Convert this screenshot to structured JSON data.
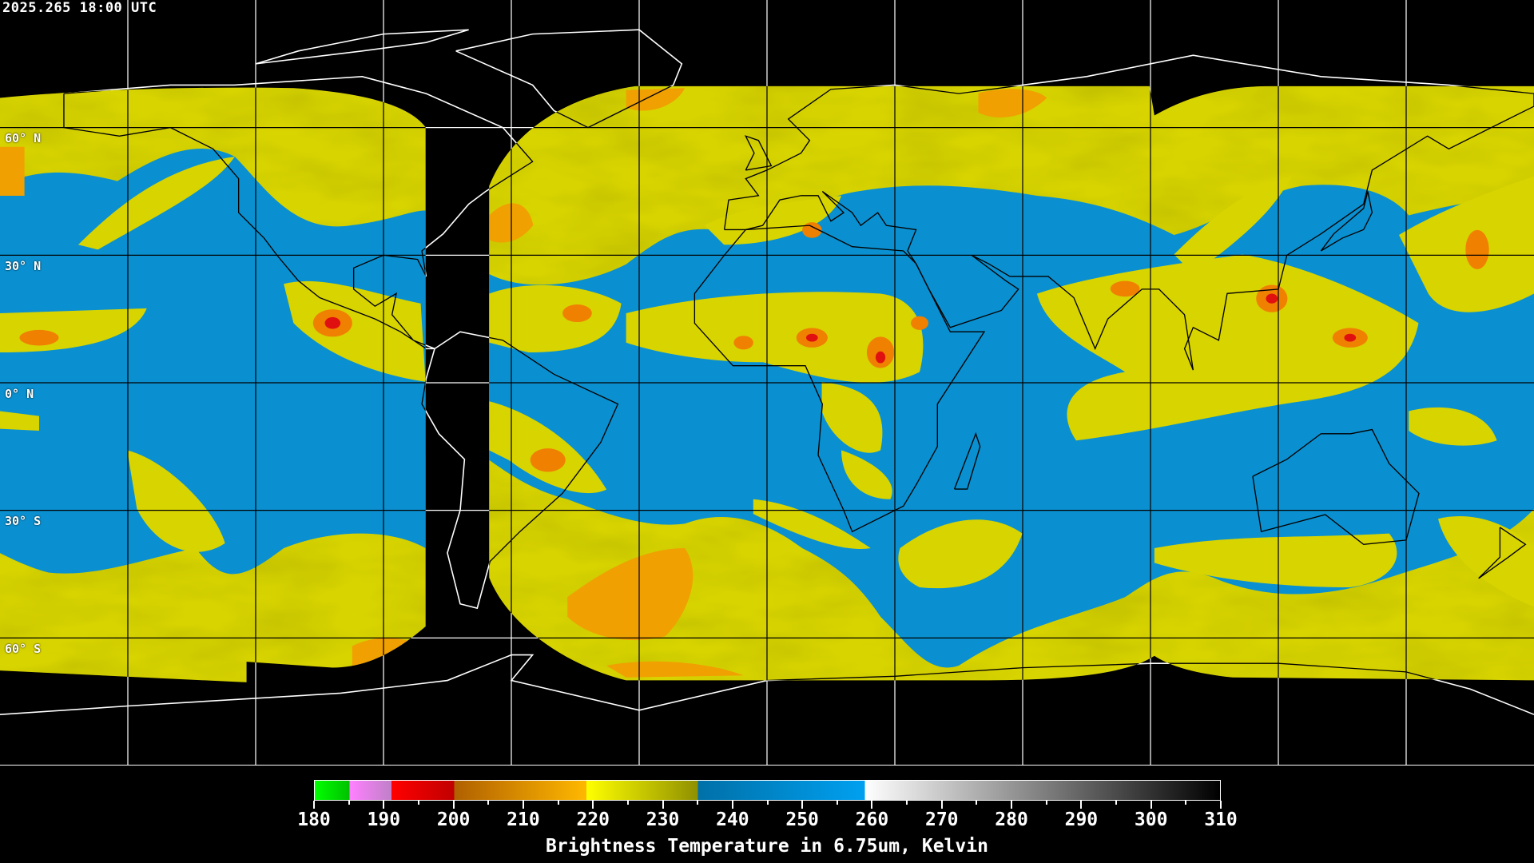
{
  "header": {
    "timestamp": "2025.265 18:00 UTC"
  },
  "map": {
    "projection": "equirectangular",
    "lon_range": [
      -180,
      180
    ],
    "lat_range": [
      -90,
      90
    ],
    "grid_spacing_deg": 30,
    "lat_labels": [
      "60° N",
      "30° N",
      "0° N",
      "30° S",
      "60° S"
    ],
    "colors": {
      "background": "#000000",
      "grid_inside": "#000000",
      "grid_outside": "#ffffff",
      "coast_inside": "#000000",
      "coast_outside": "#ffffff"
    }
  },
  "colorbar": {
    "range": [
      180,
      310
    ],
    "ticks": [
      "180",
      "190",
      "200",
      "210",
      "220",
      "230",
      "240",
      "250",
      "260",
      "270",
      "280",
      "290",
      "300",
      "310"
    ],
    "label": "Brightness Temperature in 6.75um, Kelvin",
    "segments": [
      {
        "from": 180,
        "to": 185,
        "colors": [
          "#00ff00",
          "#00c000"
        ]
      },
      {
        "from": 185,
        "to": 191,
        "colors": [
          "#ff80ff",
          "#c080c8"
        ]
      },
      {
        "from": 191,
        "to": 200,
        "colors": [
          "#ff0000",
          "#c00000"
        ]
      },
      {
        "from": 200,
        "to": 219,
        "colors": [
          "#b06000",
          "#ffb800"
        ]
      },
      {
        "from": 219,
        "to": 235,
        "colors": [
          "#ffff00",
          "#909000"
        ]
      },
      {
        "from": 235,
        "to": 259,
        "colors": [
          "#0070a8",
          "#00a0f0"
        ]
      },
      {
        "from": 259,
        "to": 310,
        "colors": [
          "#ffffff",
          "#000000"
        ]
      }
    ]
  }
}
